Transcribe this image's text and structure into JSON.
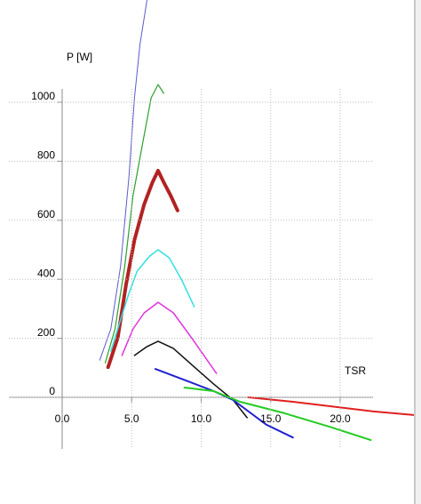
{
  "chart_data": {
    "type": "line",
    "x_label": "TSR",
    "y_label": "P [W]",
    "xlim": [
      -4,
      25.5
    ],
    "ylim": [
      -200,
      1350
    ],
    "xticks": [
      {
        "value": 0,
        "label": "0.0"
      },
      {
        "value": 5,
        "label": "5.0"
      },
      {
        "value": 10,
        "label": "10.0"
      },
      {
        "value": 15,
        "label": "15.0"
      },
      {
        "value": 20,
        "label": "20.0"
      }
    ],
    "yticks": [
      0,
      200,
      400,
      600,
      800,
      1000
    ],
    "grid": true,
    "series": [
      {
        "color": "#5a5acd",
        "line_width": 1,
        "x": [
          2.7,
          3.5,
          4.2,
          4.8,
          5.2,
          5.6,
          6.1
        ],
        "values": [
          126,
          232,
          443,
          744,
          1015,
          1196,
          1346
        ]
      },
      {
        "color": "#2ca02c",
        "line_width": 1.2,
        "x": [
          3.1,
          3.8,
          4.5,
          5.1,
          5.8,
          6.4,
          6.9,
          7.3
        ],
        "values": [
          117,
          232,
          443,
          684,
          864,
          1015,
          1060,
          1030
        ]
      },
      {
        "color": "#b22222",
        "line_width": 4,
        "x": [
          3.3,
          4.0,
          4.6,
          5.2,
          5.9,
          6.5,
          6.9,
          7.3,
          7.8,
          8.3
        ],
        "values": [
          102,
          202,
          383,
          533,
          654,
          729,
          768,
          729,
          684,
          633
        ]
      },
      {
        "color": "#33e0e0",
        "line_width": 1.5,
        "x": [
          3.5,
          4.2,
          4.8,
          5.4,
          6.3,
          6.9,
          7.7,
          8.6,
          9.5
        ],
        "values": [
          157,
          262,
          352,
          428,
          479,
          500,
          473,
          398,
          307
        ]
      },
      {
        "color": "#e033e0",
        "line_width": 1.5,
        "x": [
          4.3,
          5.1,
          5.9,
          6.9,
          8.0,
          9.3,
          11.1
        ],
        "values": [
          142,
          232,
          286,
          322,
          286,
          202,
          81
        ]
      },
      {
        "color": "#111111",
        "line_width": 1.5,
        "x": [
          5.2,
          6.1,
          6.9,
          8.0,
          9.3,
          10.9,
          12.3,
          13.3
        ],
        "values": [
          142,
          172,
          190,
          166,
          111,
          45,
          -9,
          -69
        ]
      },
      {
        "color": "#2020d0",
        "line_width": 2,
        "x": [
          6.7,
          8.9,
          10.9,
          12.3,
          14.7,
          16.6
        ],
        "values": [
          96,
          57,
          21,
          -9,
          -93,
          -136
        ]
      },
      {
        "color": "#22cc22",
        "line_width": 2,
        "x": [
          8.8,
          10.9,
          12.8,
          16.0,
          19.2,
          22.2
        ],
        "values": [
          33,
          21,
          -15,
          -54,
          -99,
          -145
        ]
      },
      {
        "color": "#e02020",
        "line_width": 2,
        "x": [
          13.4,
          16.6,
          19.8,
          22.4,
          25.3
        ],
        "values": [
          0,
          -15,
          -33,
          -48,
          -60
        ]
      }
    ]
  }
}
